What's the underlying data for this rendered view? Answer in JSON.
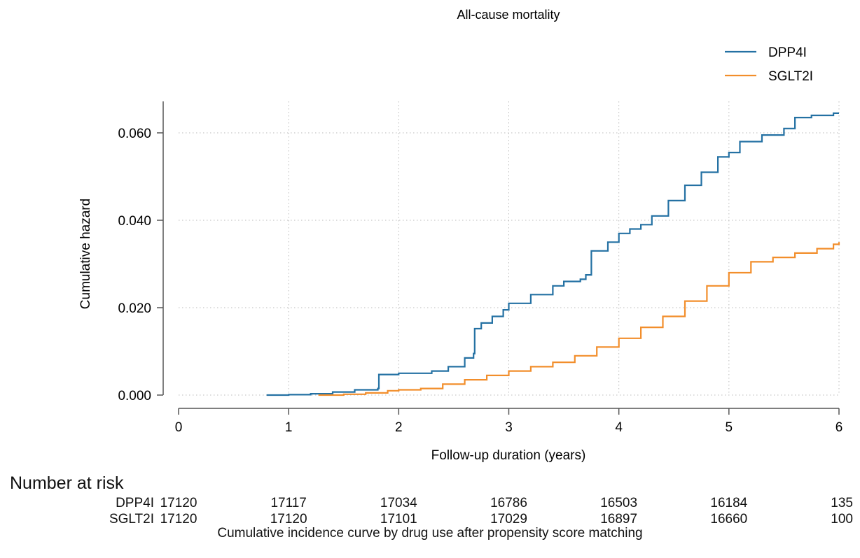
{
  "chart_data": {
    "type": "line",
    "title": "All-cause mortality",
    "xlabel": "Follow-up duration (years)",
    "ylabel": "Cumulative hazard",
    "xlim": [
      0,
      6
    ],
    "ylim": [
      0,
      0.06
    ],
    "x_ticks": [
      "0",
      "1",
      "2",
      "3",
      "4",
      "5",
      "6"
    ],
    "y_ticks": [
      "0.000",
      "0.020",
      "0.040",
      "0.060"
    ],
    "grid": true,
    "legend_position": "top-right",
    "colors": {
      "DPP4I": "#2471a3",
      "SGLT2I": "#f28e2b"
    },
    "series": [
      {
        "name": "DPP4I",
        "x": [
          0.8,
          1.0,
          1.2,
          1.4,
          1.6,
          1.81,
          1.82,
          2.0,
          2.3,
          2.45,
          2.6,
          2.68,
          2.69,
          2.75,
          2.85,
          2.95,
          3.0,
          3.2,
          3.4,
          3.5,
          3.65,
          3.7,
          3.75,
          3.9,
          4.0,
          4.1,
          4.2,
          4.3,
          4.45,
          4.6,
          4.75,
          4.9,
          5.0,
          5.1,
          5.3,
          5.5,
          5.6,
          5.75,
          5.9,
          5.95,
          6.0
        ],
        "y": [
          0.0,
          0.0001,
          0.0003,
          0.0007,
          0.0012,
          0.0015,
          0.0047,
          0.005,
          0.0055,
          0.0065,
          0.0085,
          0.0095,
          0.0152,
          0.0165,
          0.018,
          0.0195,
          0.021,
          0.023,
          0.025,
          0.026,
          0.0265,
          0.0275,
          0.033,
          0.035,
          0.037,
          0.038,
          0.039,
          0.041,
          0.0445,
          0.048,
          0.051,
          0.0545,
          0.0555,
          0.058,
          0.0595,
          0.061,
          0.0635,
          0.064,
          0.064,
          0.0645,
          0.0645
        ]
      },
      {
        "name": "SGLT2I",
        "x": [
          1.27,
          1.5,
          1.7,
          1.9,
          2.0,
          2.2,
          2.4,
          2.6,
          2.8,
          3.0,
          3.2,
          3.4,
          3.6,
          3.8,
          4.0,
          4.2,
          4.4,
          4.6,
          4.8,
          5.0,
          5.2,
          5.4,
          5.6,
          5.8,
          5.95,
          6.0
        ],
        "y": [
          0.0,
          0.0002,
          0.0005,
          0.001,
          0.0012,
          0.0015,
          0.0025,
          0.0035,
          0.0045,
          0.0055,
          0.0065,
          0.0075,
          0.009,
          0.011,
          0.013,
          0.0155,
          0.018,
          0.0215,
          0.025,
          0.028,
          0.0305,
          0.0315,
          0.0325,
          0.0335,
          0.0345,
          0.035
        ]
      }
    ]
  },
  "risk_table": {
    "heading": "Number at risk",
    "rows": [
      {
        "label": "DPP4I",
        "values": [
          "17120",
          "17117",
          "17034",
          "16786",
          "16503",
          "16184",
          "135"
        ]
      },
      {
        "label": "SGLT2I",
        "values": [
          "17120",
          "17120",
          "17101",
          "17029",
          "16897",
          "16660",
          "100"
        ]
      }
    ]
  },
  "caption": "Cumulative incidence curve by drug use after propensity score matching"
}
